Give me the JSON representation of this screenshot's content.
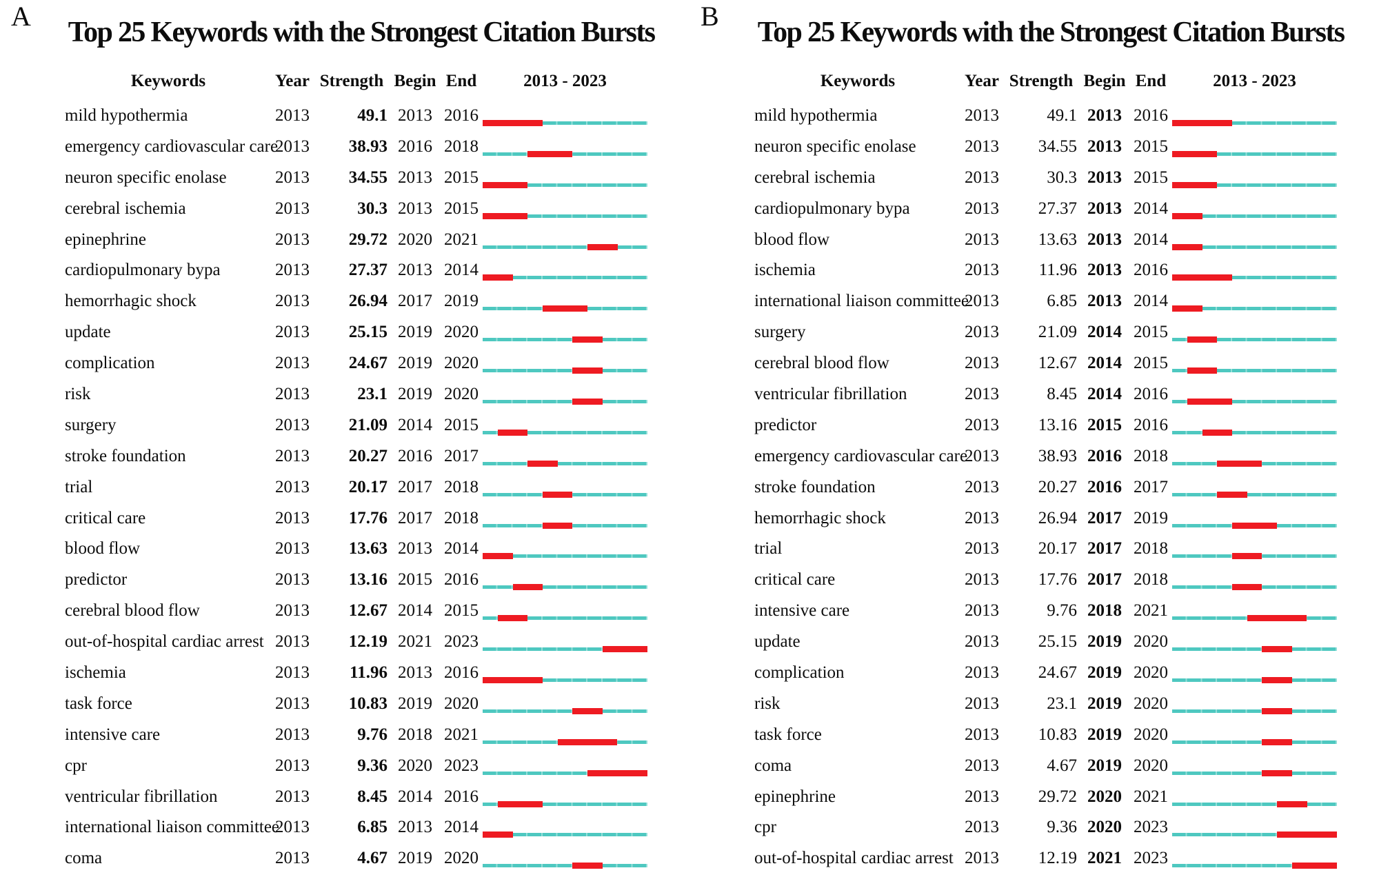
{
  "colors": {
    "burst_red": "#ee1b22",
    "timeline_cyan": "#4ec8c0",
    "timeline_separator": "#93ded8",
    "text": "#0d0d0d",
    "background": "#ffffff"
  },
  "chart_data": [
    {
      "type": "table",
      "panel_label": "A",
      "title": "Top 25 Keywords with the Strongest Citation Bursts",
      "columns": [
        "Keywords",
        "Year",
        "Strength",
        "Begin",
        "End",
        "2013 - 2023"
      ],
      "timeline_range": [
        2013,
        2023
      ],
      "bold_column": "Strength",
      "legend": "red segment = burst period (Begin to End), cyan segment = remainder of 2013-2023",
      "rows": [
        [
          "mild hypothermia",
          2013,
          "49.1",
          2013,
          2016
        ],
        [
          "emergency cardiovascular care",
          2013,
          "38.93",
          2016,
          2018
        ],
        [
          "neuron specific enolase",
          2013,
          "34.55",
          2013,
          2015
        ],
        [
          "cerebral ischemia",
          2013,
          "30.3",
          2013,
          2015
        ],
        [
          "epinephrine",
          2013,
          "29.72",
          2020,
          2021
        ],
        [
          "cardiopulmonary bypa",
          2013,
          "27.37",
          2013,
          2014
        ],
        [
          "hemorrhagic shock",
          2013,
          "26.94",
          2017,
          2019
        ],
        [
          "update",
          2013,
          "25.15",
          2019,
          2020
        ],
        [
          "complication",
          2013,
          "24.67",
          2019,
          2020
        ],
        [
          "risk",
          2013,
          "23.1",
          2019,
          2020
        ],
        [
          "surgery",
          2013,
          "21.09",
          2014,
          2015
        ],
        [
          "stroke foundation",
          2013,
          "20.27",
          2016,
          2017
        ],
        [
          "trial",
          2013,
          "20.17",
          2017,
          2018
        ],
        [
          "critical care",
          2013,
          "17.76",
          2017,
          2018
        ],
        [
          "blood flow",
          2013,
          "13.63",
          2013,
          2014
        ],
        [
          "predictor",
          2013,
          "13.16",
          2015,
          2016
        ],
        [
          "cerebral blood flow",
          2013,
          "12.67",
          2014,
          2015
        ],
        [
          "out-of-hospital cardiac arrest",
          2013,
          "12.19",
          2021,
          2023
        ],
        [
          "ischemia",
          2013,
          "11.96",
          2013,
          2016
        ],
        [
          "task force",
          2013,
          "10.83",
          2019,
          2020
        ],
        [
          "intensive care",
          2013,
          "9.76",
          2018,
          2021
        ],
        [
          "cpr",
          2013,
          "9.36",
          2020,
          2023
        ],
        [
          "ventricular fibrillation",
          2013,
          "8.45",
          2014,
          2016
        ],
        [
          "international liaison committee",
          2013,
          "6.85",
          2013,
          2014
        ],
        [
          "coma",
          2013,
          "4.67",
          2019,
          2020
        ]
      ]
    },
    {
      "type": "table",
      "panel_label": "B",
      "title": "Top 25 Keywords with the Strongest Citation Bursts",
      "columns": [
        "Keywords",
        "Year",
        "Strength",
        "Begin",
        "End",
        "2013 - 2023"
      ],
      "timeline_range": [
        2013,
        2023
      ],
      "bold_column": "Begin",
      "legend": "red segment = burst period (Begin to End), cyan segment = remainder of 2013-2023",
      "rows": [
        [
          "mild hypothermia",
          2013,
          "49.1",
          2013,
          2016
        ],
        [
          "neuron specific enolase",
          2013,
          "34.55",
          2013,
          2015
        ],
        [
          "cerebral ischemia",
          2013,
          "30.3",
          2013,
          2015
        ],
        [
          "cardiopulmonary bypa",
          2013,
          "27.37",
          2013,
          2014
        ],
        [
          "blood flow",
          2013,
          "13.63",
          2013,
          2014
        ],
        [
          "ischemia",
          2013,
          "11.96",
          2013,
          2016
        ],
        [
          "international liaison committee",
          2013,
          "6.85",
          2013,
          2014
        ],
        [
          "surgery",
          2013,
          "21.09",
          2014,
          2015
        ],
        [
          "cerebral blood flow",
          2013,
          "12.67",
          2014,
          2015
        ],
        [
          "ventricular fibrillation",
          2013,
          "8.45",
          2014,
          2016
        ],
        [
          "predictor",
          2013,
          "13.16",
          2015,
          2016
        ],
        [
          "emergency cardiovascular care",
          2013,
          "38.93",
          2016,
          2018
        ],
        [
          "stroke foundation",
          2013,
          "20.27",
          2016,
          2017
        ],
        [
          "hemorrhagic shock",
          2013,
          "26.94",
          2017,
          2019
        ],
        [
          "trial",
          2013,
          "20.17",
          2017,
          2018
        ],
        [
          "critical care",
          2013,
          "17.76",
          2017,
          2018
        ],
        [
          "intensive care",
          2013,
          "9.76",
          2018,
          2021
        ],
        [
          "update",
          2013,
          "25.15",
          2019,
          2020
        ],
        [
          "complication",
          2013,
          "24.67",
          2019,
          2020
        ],
        [
          "risk",
          2013,
          "23.1",
          2019,
          2020
        ],
        [
          "task force",
          2013,
          "10.83",
          2019,
          2020
        ],
        [
          "coma",
          2013,
          "4.67",
          2019,
          2020
        ],
        [
          "epinephrine",
          2013,
          "29.72",
          2020,
          2021
        ],
        [
          "cpr",
          2013,
          "9.36",
          2020,
          2023
        ],
        [
          "out-of-hospital cardiac arrest",
          2013,
          "12.19",
          2021,
          2023
        ]
      ]
    }
  ]
}
